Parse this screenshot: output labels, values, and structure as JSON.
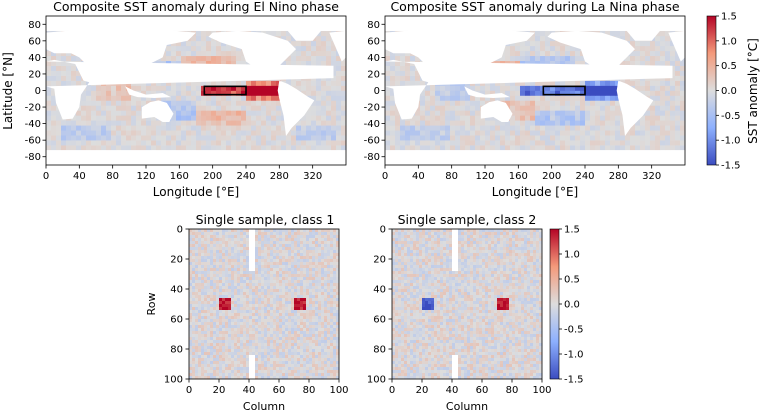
{
  "chart_data": [
    {
      "type": "heatmap",
      "title": "Composite SST anomaly during El Nino phase",
      "xlabel": "Longitude [°E]",
      "ylabel": "Latitude [°N]",
      "xlim": [
        0,
        360
      ],
      "ylim": [
        -90,
        90
      ],
      "xticks": [
        0,
        40,
        80,
        120,
        160,
        200,
        240,
        280,
        320
      ],
      "yticks": [
        80,
        60,
        40,
        20,
        0,
        -20,
        -40,
        -60,
        -80
      ],
      "box": {
        "lon": [
          190,
          240
        ],
        "lat": [
          -5,
          5
        ]
      },
      "anomalies": [
        {
          "lon": [
            185,
            280
          ],
          "lat": [
            -5,
            5
          ],
          "value": 1.3
        },
        {
          "lon": [
            240,
            280
          ],
          "lat": [
            -10,
            10
          ],
          "value": 0.9
        },
        {
          "lon": [
            160,
            230
          ],
          "lat": [
            20,
            40
          ],
          "value": 0.4
        },
        {
          "lon": [
            180,
            240
          ],
          "lat": [
            -40,
            -25
          ],
          "value": 0.4
        },
        {
          "lon": [
            120,
            160
          ],
          "lat": [
            15,
            35
          ],
          "value": -0.4
        },
        {
          "lon": [
            140,
            180
          ],
          "lat": [
            -35,
            -15
          ],
          "value": -0.4
        },
        {
          "lon": [
            60,
            100
          ],
          "lat": [
            -10,
            10
          ],
          "value": 0.3
        },
        {
          "lon": [
            300,
            350
          ],
          "lat": [
            -60,
            -40
          ],
          "value": -0.3
        },
        {
          "lon": [
            20,
            80
          ],
          "lat": [
            -60,
            -40
          ],
          "value": -0.3
        }
      ]
    },
    {
      "type": "heatmap",
      "title": "Composite SST anomaly during La Nina phase",
      "xlabel": "Longitude [°E]",
      "ylabel": "",
      "xlim": [
        0,
        360
      ],
      "ylim": [
        -90,
        90
      ],
      "xticks": [
        0,
        40,
        80,
        120,
        160,
        200,
        240,
        280,
        320
      ],
      "yticks": [
        80,
        60,
        40,
        20,
        0,
        -20,
        -40,
        -60,
        -80
      ],
      "box": {
        "lon": [
          190,
          240
        ],
        "lat": [
          -5,
          5
        ]
      },
      "colorbar": {
        "label": "SST anomaly [°C]",
        "range": [
          -1.5,
          1.5
        ],
        "ticks": [
          1.5,
          1.0,
          0.5,
          0.0,
          -0.5,
          -1.0,
          -1.5
        ]
      },
      "anomalies": [
        {
          "lon": [
            160,
            280
          ],
          "lat": [
            -5,
            5
          ],
          "value": -1.2
        },
        {
          "lon": [
            240,
            280
          ],
          "lat": [
            -10,
            10
          ],
          "value": -0.9
        },
        {
          "lon": [
            160,
            230
          ],
          "lat": [
            20,
            40
          ],
          "value": -0.4
        },
        {
          "lon": [
            180,
            240
          ],
          "lat": [
            -40,
            -25
          ],
          "value": -0.4
        },
        {
          "lon": [
            120,
            160
          ],
          "lat": [
            15,
            35
          ],
          "value": 0.4
        },
        {
          "lon": [
            140,
            180
          ],
          "lat": [
            -35,
            -15
          ],
          "value": 0.3
        },
        {
          "lon": [
            60,
            100
          ],
          "lat": [
            -10,
            10
          ],
          "value": -0.3
        },
        {
          "lon": [
            20,
            80
          ],
          "lat": [
            -60,
            -40
          ],
          "value": -0.3
        }
      ]
    },
    {
      "type": "heatmap",
      "title": "Single sample, class 1",
      "xlabel": "Column",
      "ylabel": "Row",
      "xlim": [
        0,
        100
      ],
      "ylim": [
        100,
        0
      ],
      "xticks": [
        0,
        20,
        40,
        60,
        80,
        100
      ],
      "yticks": [
        0,
        20,
        40,
        60,
        80,
        100
      ],
      "blank_column": 40,
      "patches": [
        {
          "col": [
            20,
            26
          ],
          "row": [
            45,
            52
          ],
          "value": 1.4
        },
        {
          "col": [
            70,
            76
          ],
          "row": [
            45,
            52
          ],
          "value": 1.4
        }
      ]
    },
    {
      "type": "heatmap",
      "title": "Single sample, class 2",
      "xlabel": "Column",
      "ylabel": "",
      "xlim": [
        0,
        100
      ],
      "ylim": [
        100,
        0
      ],
      "xticks": [
        0,
        20,
        40,
        60,
        80,
        100
      ],
      "yticks": [
        0,
        20,
        40,
        60,
        80,
        100
      ],
      "blank_column": 40,
      "patches": [
        {
          "col": [
            20,
            26
          ],
          "row": [
            45,
            52
          ],
          "value": -1.4
        },
        {
          "col": [
            70,
            76
          ],
          "row": [
            45,
            52
          ],
          "value": 1.4
        }
      ],
      "colorbar": {
        "label": "",
        "range": [
          -1.5,
          1.5
        ],
        "ticks": [
          1.5,
          1.0,
          0.5,
          0.0,
          -0.5,
          -1.0,
          -1.5
        ]
      }
    }
  ]
}
